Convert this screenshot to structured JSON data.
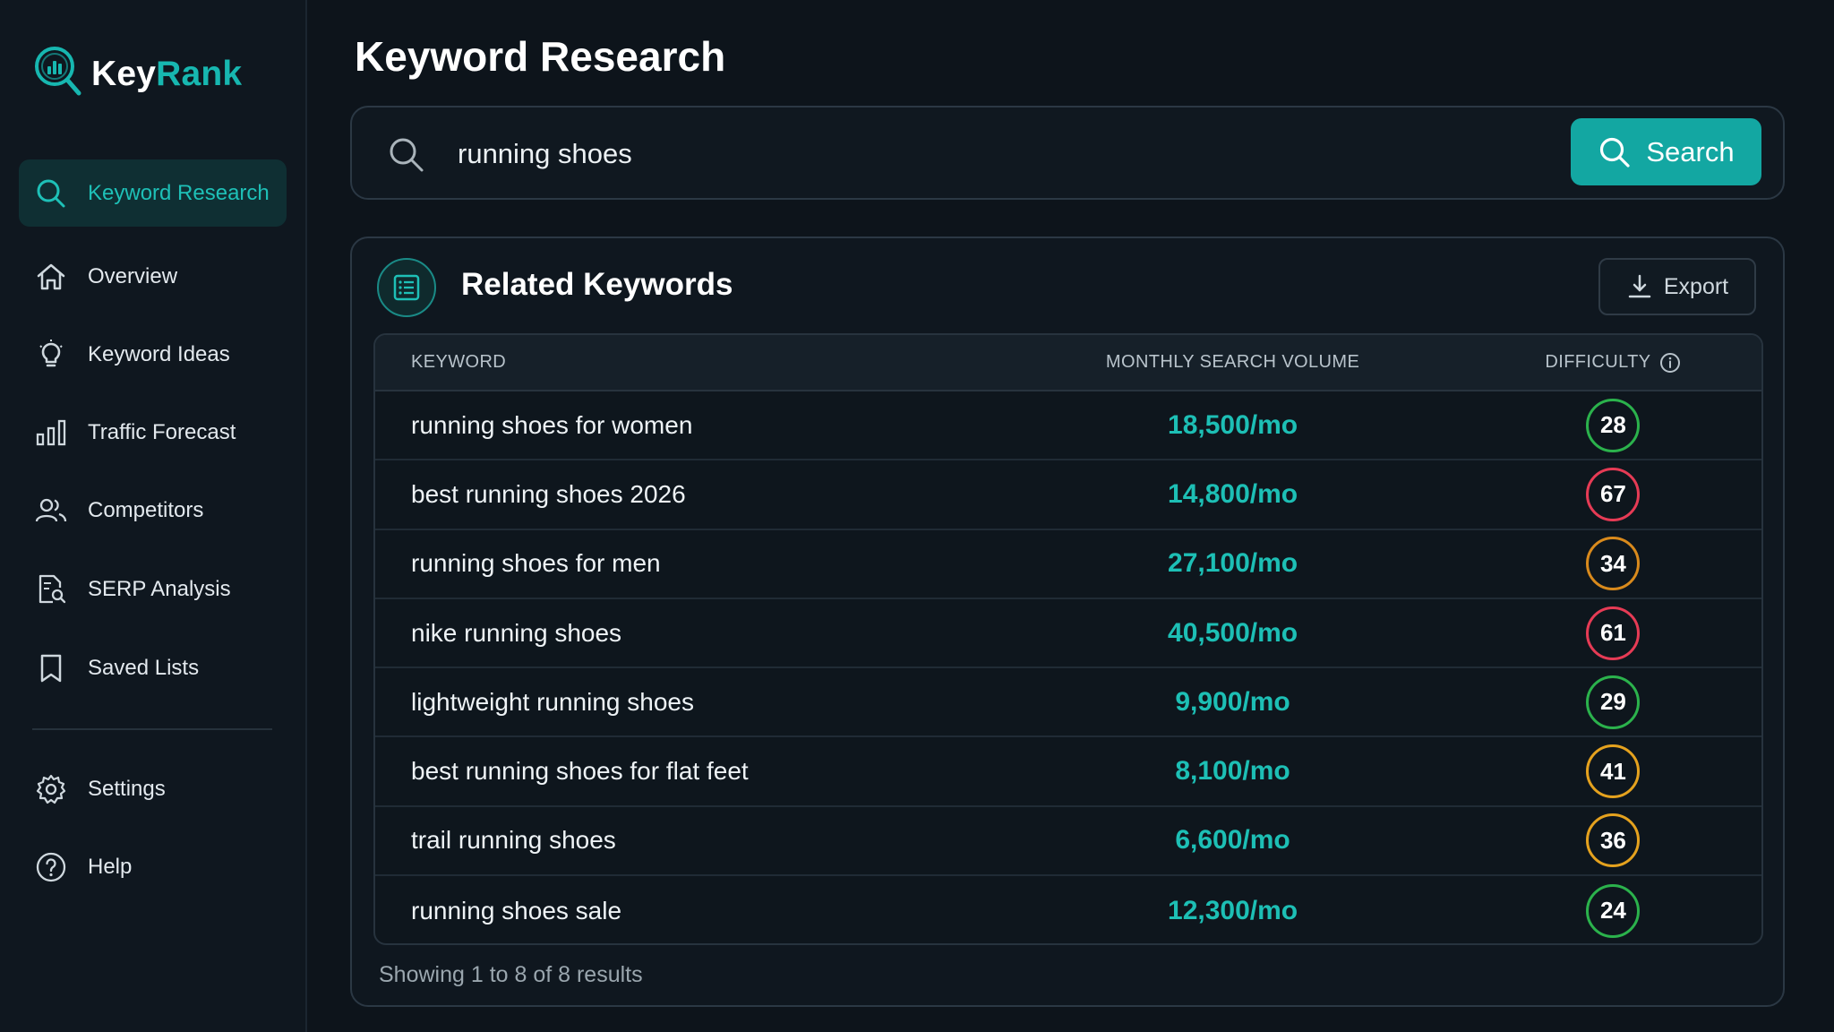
{
  "app": {
    "logo_key": "Key",
    "logo_rank": "Rank"
  },
  "sidebar": {
    "items": [
      {
        "label": "Keyword Research",
        "icon": "search-icon",
        "active": true
      },
      {
        "label": "Overview",
        "icon": "home-icon"
      },
      {
        "label": "Keyword Ideas",
        "icon": "lightbulb-icon"
      },
      {
        "label": "Traffic Forecast",
        "icon": "bar-chart-icon"
      },
      {
        "label": "Competitors",
        "icon": "users-icon"
      },
      {
        "label": "SERP Analysis",
        "icon": "document-search-icon"
      },
      {
        "label": "Saved Lists",
        "icon": "bookmark-icon"
      }
    ],
    "bottom_items": [
      {
        "label": "Settings",
        "icon": "gear-icon"
      },
      {
        "label": "Help",
        "icon": "help-circle-icon"
      }
    ]
  },
  "page": {
    "title": "Keyword Research"
  },
  "search": {
    "value": "running shoes",
    "button_label": "Search"
  },
  "related": {
    "title": "Related Keywords",
    "export_label": "Export",
    "columns": {
      "keyword": "KEYWORD",
      "volume": "MONTHLY SEARCH VOLUME",
      "difficulty": "DIFFICULTY"
    },
    "rows": [
      {
        "keyword": "running shoes for women",
        "volume": "18,500/mo",
        "difficulty": "28",
        "color": "#2bb24c"
      },
      {
        "keyword": "best running shoes 2026",
        "volume": "14,800/mo",
        "difficulty": "67",
        "color": "#e63b55"
      },
      {
        "keyword": "running shoes for men",
        "volume": "27,100/mo",
        "difficulty": "34",
        "color": "#d98a1c"
      },
      {
        "keyword": "nike running shoes",
        "volume": "40,500/mo",
        "difficulty": "61",
        "color": "#e63b55"
      },
      {
        "keyword": "lightweight running shoes",
        "volume": "9,900/mo",
        "difficulty": "29",
        "color": "#2bb24c"
      },
      {
        "keyword": "best running shoes for flat feet",
        "volume": "8,100/mo",
        "difficulty": "41",
        "color": "#e5a21e"
      },
      {
        "keyword": "trail running shoes",
        "volume": "6,600/mo",
        "difficulty": "36",
        "color": "#e5a21e"
      },
      {
        "keyword": "running shoes sale",
        "volume": "12,300/mo",
        "difficulty": "24",
        "color": "#2bb24c"
      }
    ],
    "footer": "Showing 1 to 8 of 8 results"
  },
  "colors": {
    "accent": "#13a7a2",
    "accent_text": "#1dbfb5",
    "background": "#0d141b"
  }
}
